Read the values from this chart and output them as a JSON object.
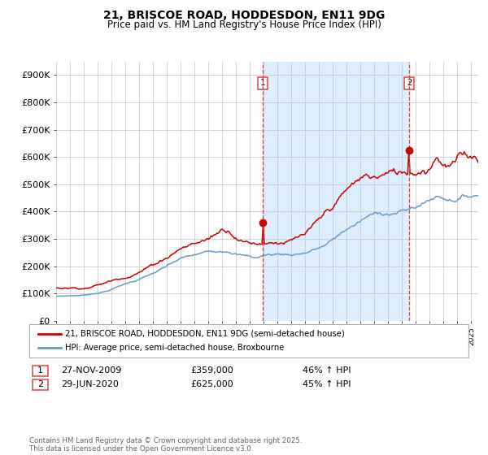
{
  "title1": "21, BRISCOE ROAD, HODDESDON, EN11 9DG",
  "title2": "Price paid vs. HM Land Registry's House Price Index (HPI)",
  "ylim": [
    0,
    950000
  ],
  "yticks": [
    0,
    100000,
    200000,
    300000,
    400000,
    500000,
    600000,
    700000,
    800000,
    900000
  ],
  "ytick_labels": [
    "£0",
    "£100K",
    "£200K",
    "£300K",
    "£400K",
    "£500K",
    "£600K",
    "£700K",
    "£800K",
    "£900K"
  ],
  "x_start_year": 1995,
  "x_end_year": 2025,
  "red_line_label": "21, BRISCOE ROAD, HODDESDON, EN11 9DG (semi-detached house)",
  "blue_line_label": "HPI: Average price, semi-detached house, Broxbourne",
  "event1_date": "27-NOV-2009",
  "event1_price": 359000,
  "event1_pct": "46%",
  "event2_date": "29-JUN-2020",
  "event2_price": 625000,
  "event2_pct": "45%",
  "event1_year": 2009.92,
  "event2_year": 2020.5,
  "red_color": "#cc0000",
  "blue_color": "#6699cc",
  "shade_color": "#ddeeff",
  "dashed_color": "#dd4444",
  "bg_color": "#ffffff",
  "grid_color": "#cccccc",
  "footer": "Contains HM Land Registry data © Crown copyright and database right 2025.\nThis data is licensed under the Open Government Licence v3.0."
}
